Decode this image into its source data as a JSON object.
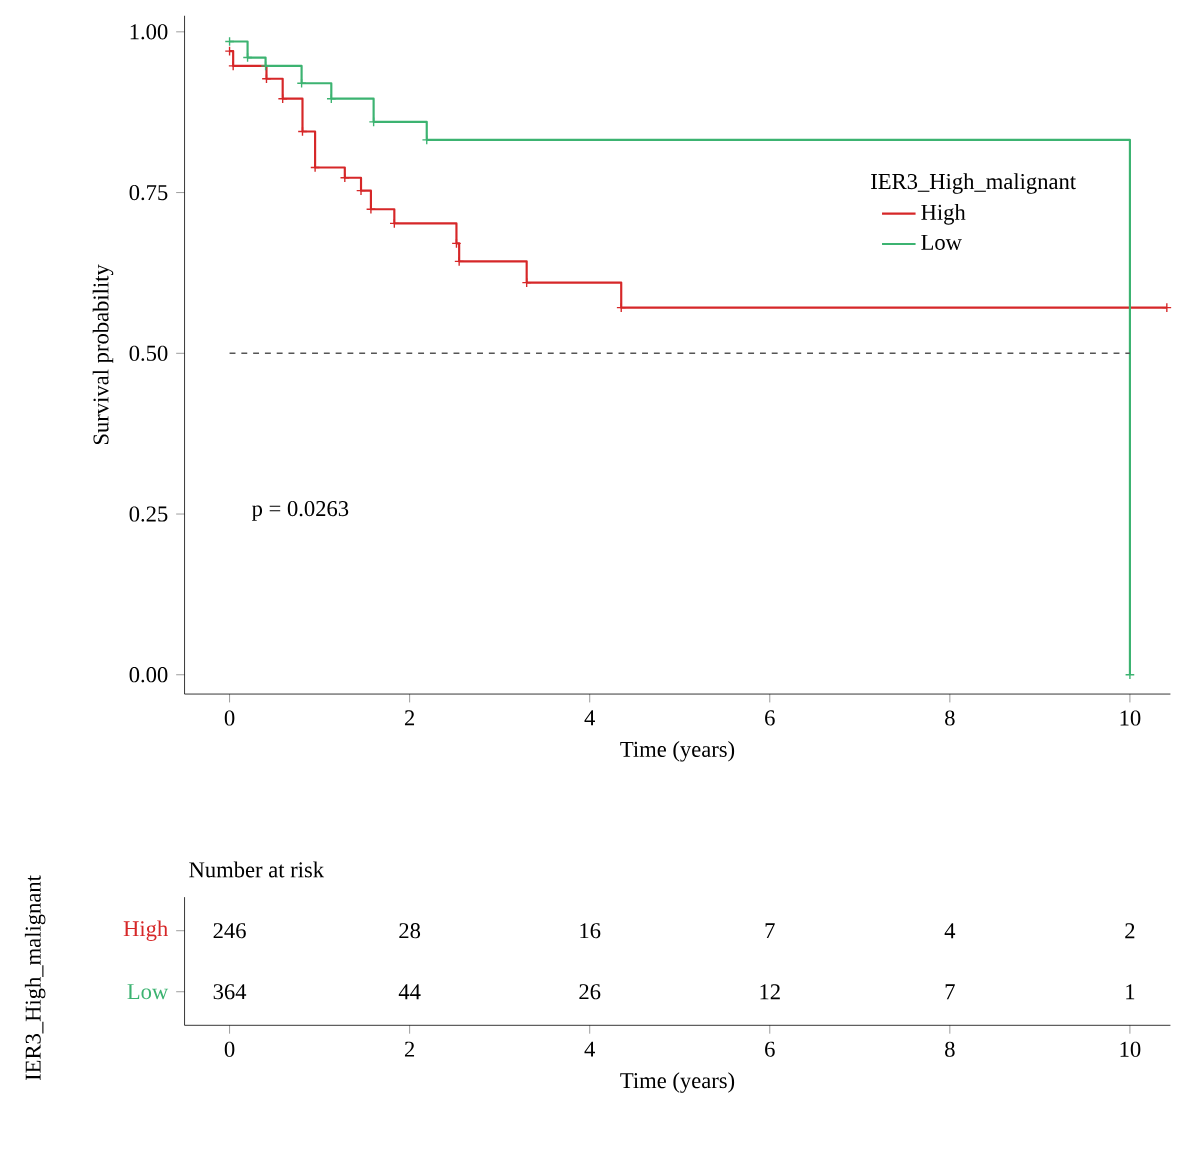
{
  "chart_data": [
    {
      "type": "step",
      "xlabel": "Time (years)",
      "ylabel": "Survival probability",
      "legend_title": "IER3_High_malignant",
      "legend": "right",
      "marker": "cross",
      "line_style": "solid",
      "xlim": [
        -0.5,
        10.45
      ],
      "ylim": [
        -0.03,
        1.025
      ],
      "xticks": [
        0,
        2,
        4,
        6,
        8,
        10
      ],
      "yticks": [
        {
          "value": 0,
          "label": "0.00"
        },
        {
          "value": 0.25,
          "label": "0.25"
        },
        {
          "value": 0.5,
          "label": "0.50"
        },
        {
          "value": 0.75,
          "label": "0.75"
        },
        {
          "value": 1,
          "label": "1.00"
        }
      ],
      "series": [
        {
          "name": "High",
          "color": "#d62728",
          "x": [
            0,
            0.04,
            0.41,
            0.59,
            0.81,
            0.95,
            1.28,
            1.46,
            1.57,
            1.83,
            2.52,
            2.55,
            3.3,
            4.35,
            10.41
          ],
          "values": [
            0.97,
            0.947,
            0.927,
            0.896,
            0.845,
            0.789,
            0.773,
            0.753,
            0.724,
            0.702,
            0.671,
            0.643,
            0.61,
            0.571,
            0.571
          ]
        },
        {
          "name": "Low",
          "color": "#3cb371",
          "x": [
            0,
            0.2,
            0.4,
            0.8,
            1.13,
            1.6,
            2.19,
            10.0
          ],
          "values": [
            0.985,
            0.96,
            0.947,
            0.92,
            0.896,
            0.86,
            0.832,
            0
          ]
        }
      ],
      "ref_lines": [
        {
          "axis": "y",
          "value": 0.5,
          "color": "#555555",
          "line_style": "dashed"
        }
      ],
      "annotations": [
        "p = 0.0263"
      ]
    },
    {
      "type": "heatmap",
      "title": "Number at risk",
      "xlabel": "Time (years)",
      "ylabel": "IER3_High_malignant",
      "data_labels": true,
      "categories": [
        "0",
        "2",
        "4",
        "6",
        "8",
        "10"
      ],
      "y_categories": [
        "High",
        "Low"
      ],
      "cells": [
        [
          246,
          28,
          16,
          7,
          4,
          2
        ],
        [
          364,
          44,
          26,
          12,
          7,
          1
        ]
      ]
    }
  ]
}
